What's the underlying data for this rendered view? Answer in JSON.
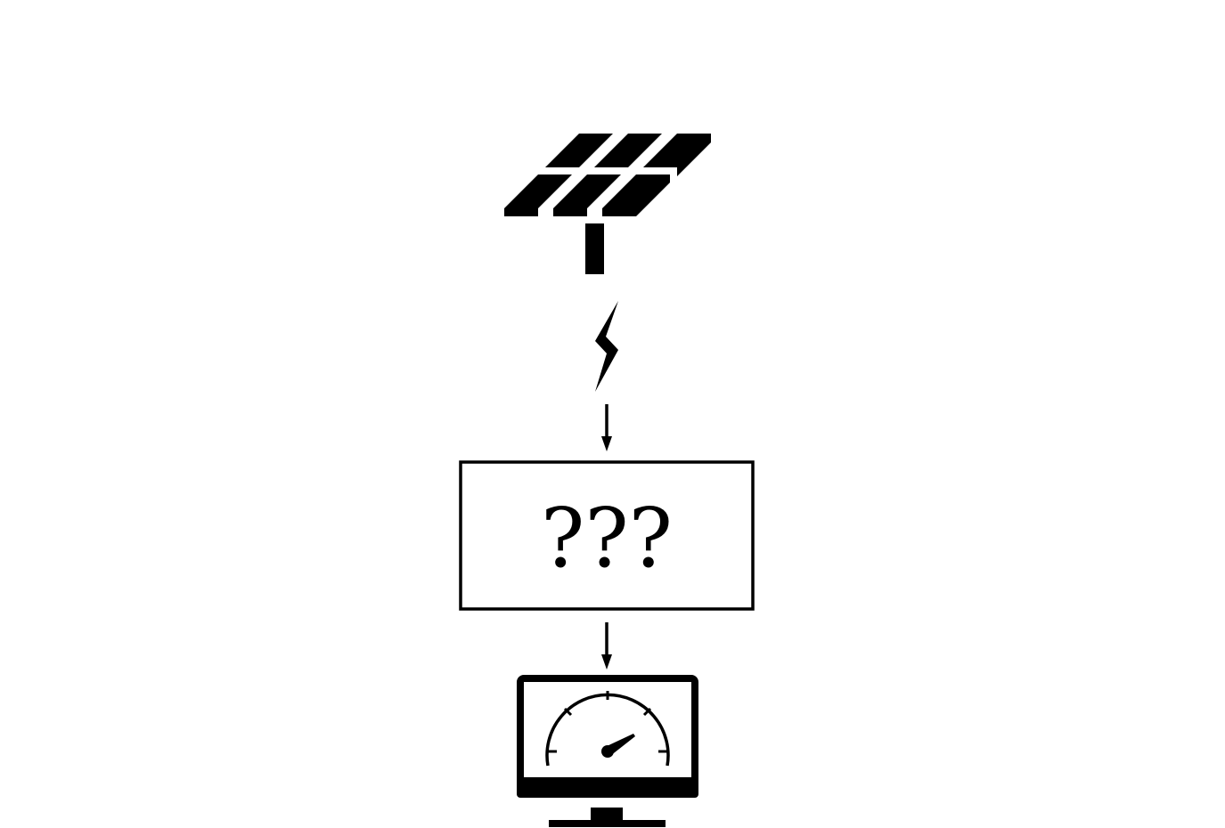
{
  "diagram": {
    "nodes": [
      {
        "id": "solar-panel",
        "icon": "solar-panel-icon"
      },
      {
        "id": "electricity",
        "icon": "lightning-bolt-icon"
      },
      {
        "id": "unknown-process",
        "label": "???"
      },
      {
        "id": "monitor",
        "icon": "monitor-gauge-icon"
      }
    ],
    "edges": [
      {
        "from": "electricity",
        "to": "unknown-process"
      },
      {
        "from": "unknown-process",
        "to": "monitor"
      }
    ],
    "colors": {
      "stroke": "#000000",
      "fill": "#000000",
      "background": "#ffffff"
    }
  }
}
